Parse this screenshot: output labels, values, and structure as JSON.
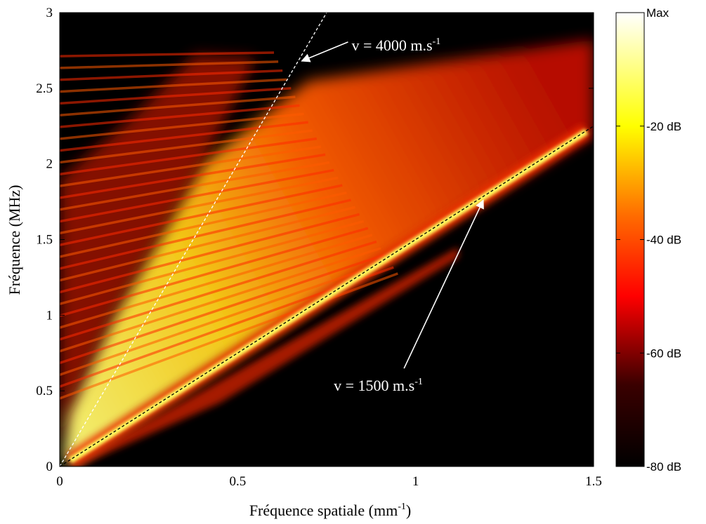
{
  "chart_data": {
    "type": "heatmap",
    "title": "",
    "xlabel": "Fréquence spatiale (mm",
    "xlabel_sup": "-1",
    "xlabel_close": ")",
    "ylabel": "Fréquence (MHz)",
    "xlim": [
      0,
      1.5
    ],
    "ylim": [
      0,
      3
    ],
    "x_ticks": [
      {
        "value": 0,
        "label": "0"
      },
      {
        "value": 0.5,
        "label": "0.5"
      },
      {
        "value": 1,
        "label": "1"
      },
      {
        "value": 1.5,
        "label": "1.5"
      }
    ],
    "y_ticks": [
      {
        "value": 0,
        "label": "0"
      },
      {
        "value": 0.5,
        "label": "0.5"
      },
      {
        "value": 1,
        "label": "1"
      },
      {
        "value": 1.5,
        "label": "1.5"
      },
      {
        "value": 2,
        "label": "2"
      },
      {
        "value": 2.5,
        "label": "2.5"
      },
      {
        "value": 3,
        "label": "3"
      }
    ],
    "colorbar": {
      "colormap": "hot",
      "range_db": [
        -80,
        0
      ],
      "ticks": [
        {
          "value": 0,
          "label": "Max"
        },
        {
          "value": -20,
          "label": "-20 dB"
        },
        {
          "value": -40,
          "label": "-40 dB"
        },
        {
          "value": -60,
          "label": "-60 dB"
        },
        {
          "value": -80,
          "label": "-80 dB"
        }
      ]
    },
    "annotations": [
      {
        "text": "v = 4000 m.s",
        "sup": "-1",
        "velocity_m_per_s": 4000,
        "line_x": [
          0,
          0.75
        ],
        "line_y": [
          0,
          3
        ],
        "line_color": "#ffffff",
        "arrow_tip": [
          0.68,
          2.68
        ],
        "text_pos": [
          0.82,
          2.75
        ]
      },
      {
        "text": "v = 1500 m.s",
        "sup": "-1",
        "velocity_m_per_s": 1500,
        "line_x": [
          0,
          1.5
        ],
        "line_y": [
          0,
          2.25
        ],
        "line_color": "#000000",
        "arrow_tip": [
          1.19,
          1.76
        ],
        "text_pos": [
          0.77,
          0.5
        ]
      }
    ],
    "branches": {
      "fan_upper_end": [
        1.5,
        2.82
      ],
      "fan_lower_end": [
        1.5,
        2.2
      ],
      "strong_branch_slope_mhz_per_mm1": 1.5,
      "lower_branch_end": [
        1.12,
        1.45
      ]
    }
  }
}
